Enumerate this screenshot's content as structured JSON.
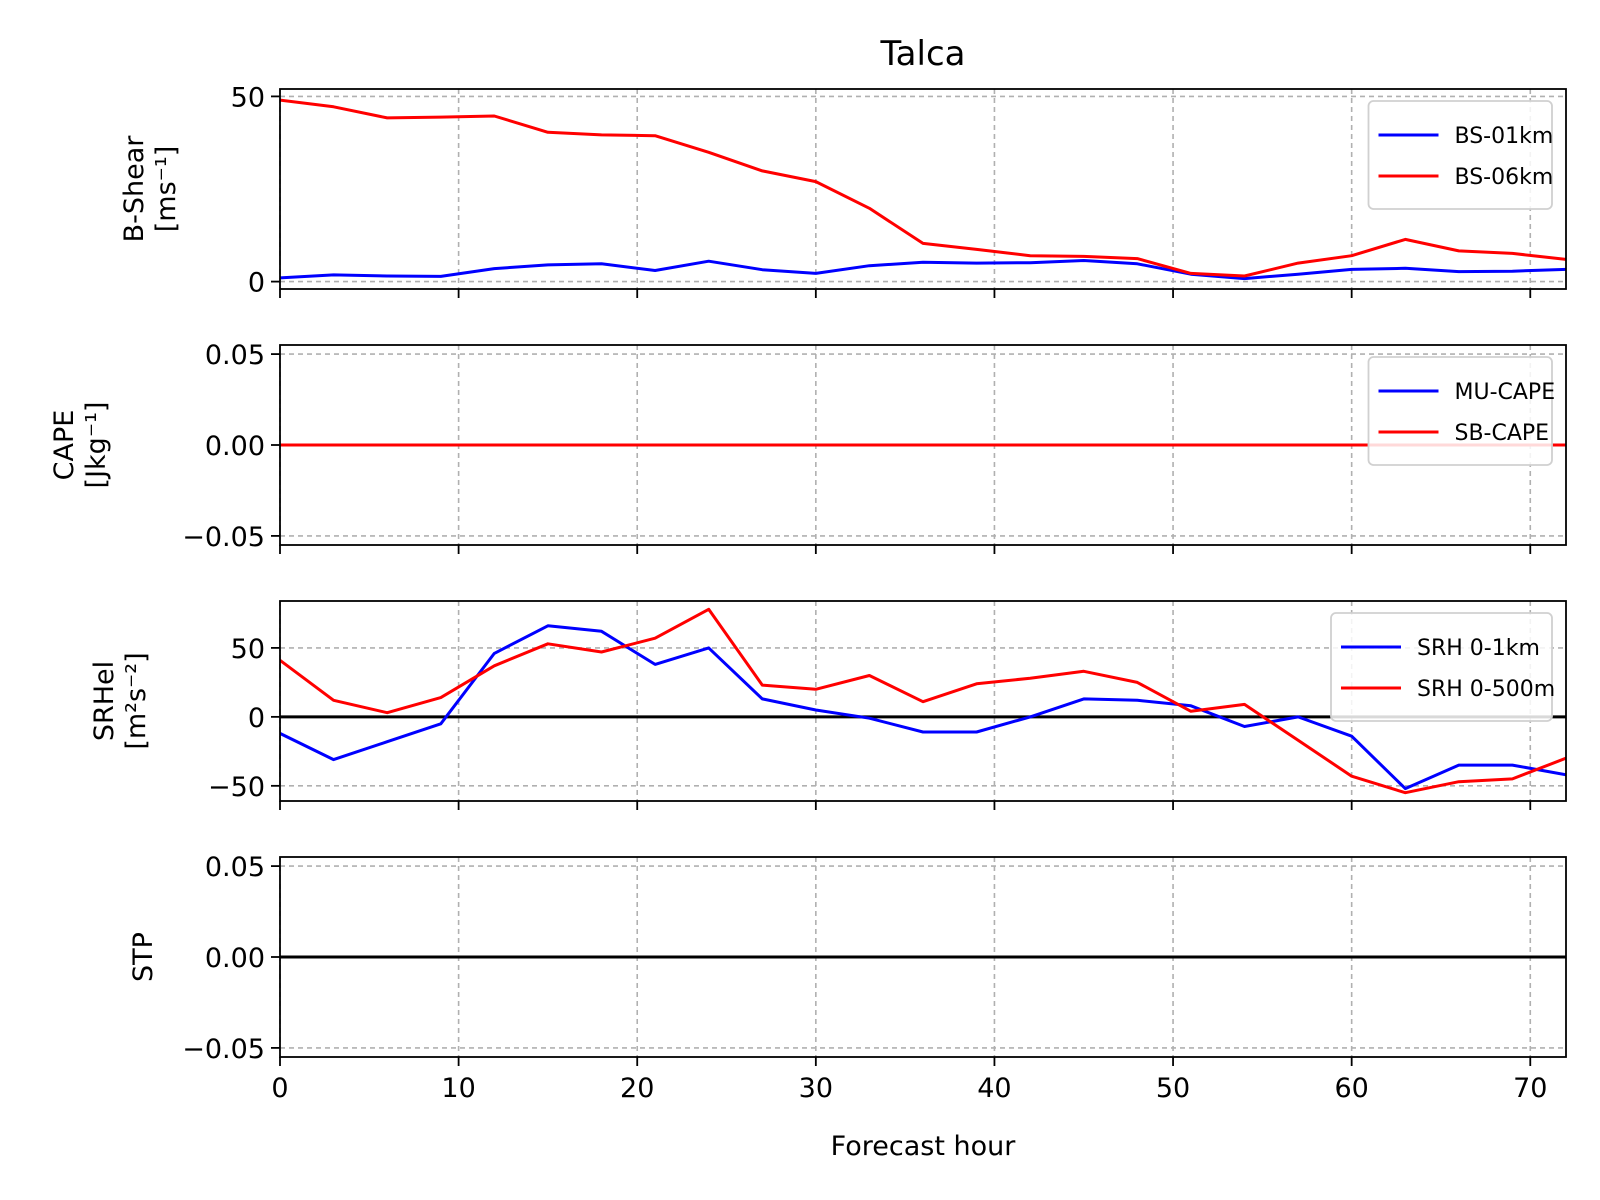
{
  "chart_data": {
    "type": "line",
    "title": "Talca",
    "xlabel": "Forecast hour",
    "xlim": [
      0,
      72
    ],
    "xticks": [
      0,
      10,
      20,
      30,
      40,
      50,
      60,
      70
    ],
    "grid": true,
    "x": [
      0,
      3,
      6,
      9,
      12,
      15,
      18,
      21,
      24,
      27,
      30,
      33,
      36,
      39,
      42,
      45,
      48,
      51,
      54,
      57,
      60,
      63,
      66,
      69,
      72
    ],
    "panels": [
      {
        "id": "bshear",
        "ylabel": [
          "B-Shear",
          "[ms⁻¹]"
        ],
        "ylim": [
          -2,
          52
        ],
        "yticks": [
          {
            "value": 0,
            "label": "0"
          },
          {
            "value": 50,
            "label": "50"
          }
        ],
        "zero_line": false,
        "legend": "upper right",
        "series": [
          {
            "name": "BS-01km",
            "color": "#0000ff",
            "values": [
              1,
              1.8,
              1.5,
              1.4,
              3.5,
              4.5,
              4.8,
              3,
              5.5,
              3.2,
              2.2,
              4.3,
              5.2,
              5,
              5.1,
              5.7,
              4.8,
              2,
              0.8,
              2,
              3.3,
              3.6,
              2.7,
              2.8,
              3.3
            ]
          },
          {
            "name": "BS-06km",
            "color": "#ff0000",
            "values": [
              49,
              47.2,
              44.2,
              44.4,
              44.7,
              40.3,
              39.6,
              39.4,
              34.9,
              29.9,
              27,
              19.8,
              10.3,
              8.7,
              7,
              6.8,
              6.2,
              2.2,
              1.5,
              5,
              7,
              11.4,
              8.3,
              7.6,
              6
            ]
          }
        ]
      },
      {
        "id": "cape",
        "ylabel": [
          "CAPE",
          "[Jkg⁻¹]"
        ],
        "ylim": [
          -0.055,
          0.055
        ],
        "yticks": [
          {
            "value": -0.05,
            "label": "−0.05"
          },
          {
            "value": 0,
            "label": "0.00"
          },
          {
            "value": 0.05,
            "label": "0.05"
          }
        ],
        "zero_line": false,
        "legend": "upper right",
        "series": [
          {
            "name": "MU-CAPE",
            "color": "#0000ff",
            "values": [
              0,
              0,
              0,
              0,
              0,
              0,
              0,
              0,
              0,
              0,
              0,
              0,
              0,
              0,
              0,
              0,
              0,
              0,
              0,
              0,
              0,
              0,
              0,
              0,
              0
            ]
          },
          {
            "name": "SB-CAPE",
            "color": "#ff0000",
            "values": [
              0,
              0,
              0,
              0,
              0,
              0,
              0,
              0,
              0,
              0,
              0,
              0,
              0,
              0,
              0,
              0,
              0,
              0,
              0,
              0,
              0,
              0,
              0,
              0,
              0
            ]
          }
        ]
      },
      {
        "id": "srhel",
        "ylabel": [
          "SRHel",
          "[m²s⁻²]"
        ],
        "ylim": [
          -61,
          84
        ],
        "yticks": [
          {
            "value": -50,
            "label": "−50"
          },
          {
            "value": 0,
            "label": "0"
          },
          {
            "value": 50,
            "label": "50"
          }
        ],
        "zero_line": true,
        "legend": "upper right",
        "series": [
          {
            "name": "SRH 0-1km",
            "color": "#0000ff",
            "values": [
              -12,
              -31,
              -18,
              -5,
              46,
              66,
              62,
              38,
              50,
              13,
              5,
              -1,
              -11,
              -11,
              0,
              13,
              12,
              8,
              -7,
              0,
              -14,
              -52,
              -35,
              -35,
              -42
            ]
          },
          {
            "name": "SRH 0-500m",
            "color": "#ff0000",
            "values": [
              41,
              12,
              3,
              14,
              37,
              53,
              47,
              57,
              78,
              23,
              20,
              30,
              11,
              24,
              28,
              33,
              25,
              4,
              9,
              -17,
              -43,
              -55,
              -47,
              -45,
              -30
            ]
          }
        ]
      },
      {
        "id": "stp",
        "ylabel": [
          "STP"
        ],
        "ylim": [
          -0.055,
          0.055
        ],
        "yticks": [
          {
            "value": -0.05,
            "label": "−0.05"
          },
          {
            "value": 0,
            "label": "0.00"
          },
          {
            "value": 0.05,
            "label": "0.05"
          }
        ],
        "zero_line": true,
        "legend": "none",
        "series": []
      }
    ]
  }
}
